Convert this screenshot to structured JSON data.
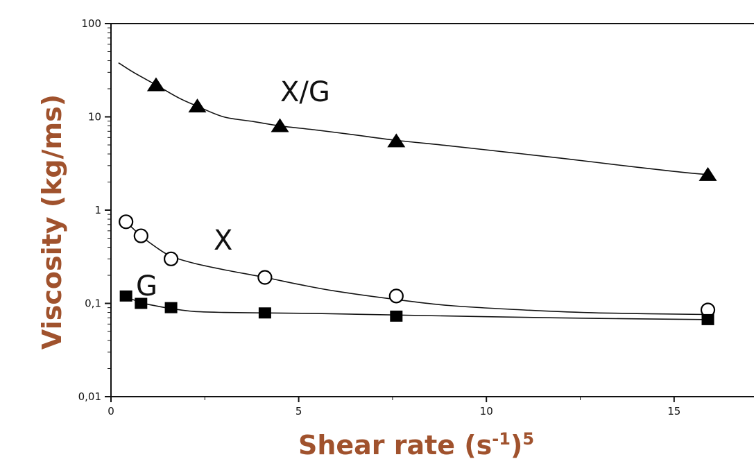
{
  "chart_data": {
    "type": "scatter",
    "title": "",
    "xlabel": "Shear rate (s",
    "xlabel_sup1": "-1",
    "xlabel_mid": ")",
    "xlabel_sup2": "5",
    "ylabel": "Viscosity (kg/ms)",
    "xlim": [
      0,
      17
    ],
    "ylim": [
      0.01,
      100
    ],
    "yscale": "log",
    "grid": false,
    "x_ticks": [
      {
        "value": 0,
        "label": "0"
      },
      {
        "value": 5,
        "label": "5"
      },
      {
        "value": 10,
        "label": "10"
      },
      {
        "value": 15,
        "label": "15"
      }
    ],
    "y_ticks": [
      {
        "value": 100,
        "label": "100"
      },
      {
        "value": 10,
        "label": "10"
      },
      {
        "value": 1,
        "label": "1"
      },
      {
        "value": 0.1,
        "label": "0,1"
      },
      {
        "value": 0.01,
        "label": "0,01"
      }
    ],
    "series": [
      {
        "name": "X/G",
        "marker": "filled-triangle",
        "x": [
          1.2,
          2.3,
          4.5,
          7.6,
          15.9
        ],
        "y": [
          22,
          13,
          8,
          5.5,
          2.4
        ],
        "curve_x": [
          0.2,
          0.6,
          1.2,
          1.8,
          2.3,
          3.0,
          3.8,
          4.5,
          5.5,
          6.5,
          7.6,
          9.0,
          10.5,
          12.0,
          13.5,
          15.0,
          15.9
        ],
        "curve_y": [
          38,
          30,
          22,
          16,
          13,
          10,
          8.9,
          8.0,
          7.2,
          6.4,
          5.6,
          4.9,
          4.2,
          3.6,
          3.05,
          2.6,
          2.4
        ]
      },
      {
        "name": "X",
        "marker": "open-circle",
        "x": [
          0.4,
          0.8,
          1.6,
          4.1,
          7.6,
          15.9
        ],
        "y": [
          0.75,
          0.53,
          0.3,
          0.19,
          0.12,
          0.085
        ],
        "curve_x": [
          0.4,
          0.8,
          1.2,
          1.6,
          2.2,
          3.0,
          4.1,
          5.0,
          6.0,
          7.6,
          9.0,
          11.0,
          13.0,
          15.9
        ],
        "curve_y": [
          0.75,
          0.53,
          0.4,
          0.32,
          0.27,
          0.23,
          0.19,
          0.16,
          0.135,
          0.11,
          0.095,
          0.085,
          0.079,
          0.076
        ]
      },
      {
        "name": "G",
        "marker": "filled-square",
        "x": [
          0.4,
          0.8,
          1.6,
          4.1,
          7.6,
          15.9
        ],
        "y": [
          0.12,
          0.1,
          0.09,
          0.079,
          0.073,
          0.067
        ],
        "curve_x": [
          0.4,
          0.8,
          1.2,
          1.6,
          2.2,
          3.0,
          4.1,
          5.5,
          7.6,
          10.0,
          13.0,
          15.9
        ],
        "curve_y": [
          0.118,
          0.102,
          0.094,
          0.088,
          0.082,
          0.08,
          0.079,
          0.078,
          0.075,
          0.072,
          0.069,
          0.067
        ]
      }
    ],
    "series_labels": [
      {
        "text": "X/G"
      },
      {
        "text": "X"
      },
      {
        "text": "G"
      }
    ]
  }
}
